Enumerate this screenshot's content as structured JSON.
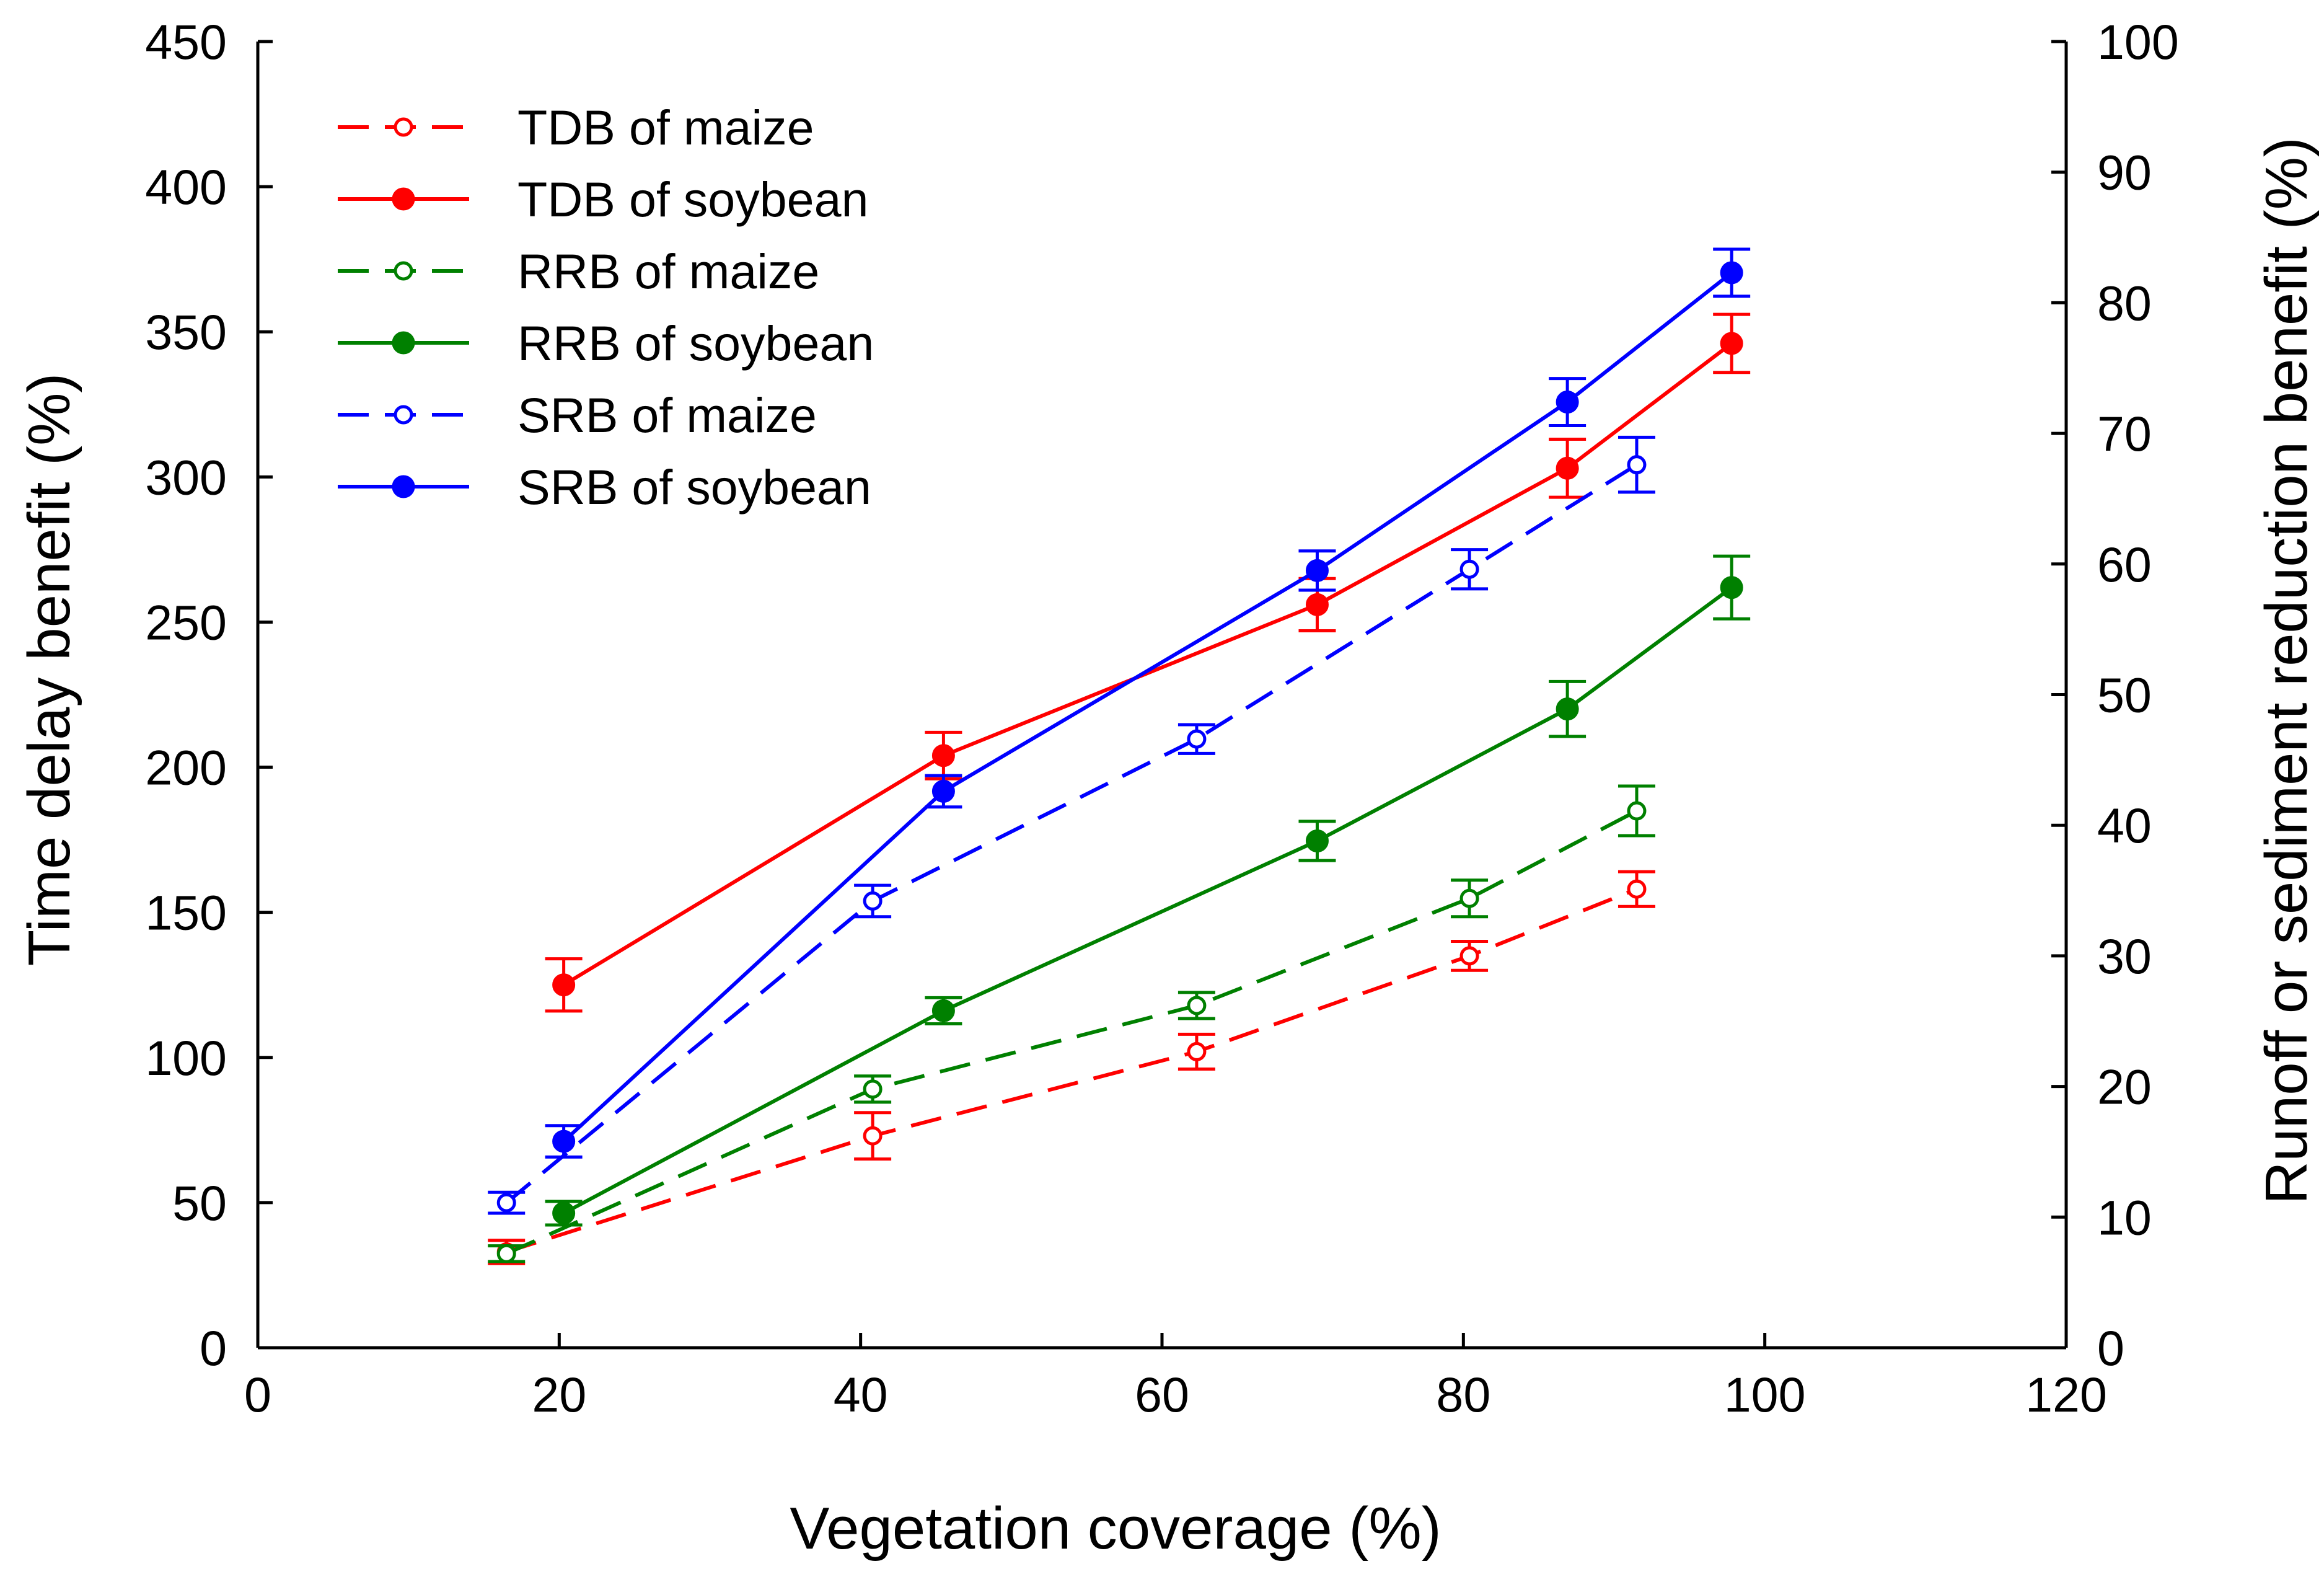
{
  "chart_data": {
    "type": "line",
    "title": "",
    "xlabel": "Vegetation coverage (%)",
    "ylabel_left": "Time delay benefit (%)",
    "ylabel_right": "Runoff or sediment reduction benefit (%)",
    "xlim": [
      0,
      120
    ],
    "ylim_left": [
      0,
      450
    ],
    "ylim_right": [
      0,
      100
    ],
    "xticks": [
      "0",
      "20",
      "40",
      "60",
      "80",
      "100",
      "120"
    ],
    "yticks_left": [
      "0",
      "50",
      "100",
      "150",
      "200",
      "250",
      "300",
      "350",
      "400",
      "450"
    ],
    "yticks_right": [
      "0",
      "10",
      "20",
      "30",
      "40",
      "50",
      "60",
      "70",
      "80",
      "90",
      "100"
    ],
    "grid": false,
    "legend_position": "top-left",
    "series": [
      {
        "name": "TDB of maize",
        "axis": "left",
        "color": "#ff0000",
        "dash": true,
        "filled": false,
        "x": [
          16.5,
          40.8,
          62.3,
          80.4,
          91.5
        ],
        "y": [
          33,
          73,
          102,
          135,
          158
        ],
        "err": [
          4,
          8,
          6,
          5,
          6
        ]
      },
      {
        "name": "TDB of soybean",
        "axis": "left",
        "color": "#ff0000",
        "dash": false,
        "filled": true,
        "x": [
          20.3,
          45.5,
          70.3,
          86.9,
          97.8
        ],
        "y": [
          125,
          204,
          256,
          303,
          346
        ],
        "err": [
          9,
          8,
          9,
          10,
          10
        ]
      },
      {
        "name": "RRB of maize",
        "axis": "right",
        "color": "#008000",
        "dash": true,
        "filled": false,
        "x": [
          16.5,
          40.8,
          62.3,
          80.4,
          91.5
        ],
        "y": [
          7.2,
          19.8,
          26.2,
          34.4,
          41.1
        ],
        "err": [
          0.6,
          1.0,
          1.0,
          1.4,
          1.9
        ]
      },
      {
        "name": "RRB of soybean",
        "axis": "right",
        "color": "#008000",
        "dash": false,
        "filled": true,
        "x": [
          20.3,
          45.5,
          70.3,
          86.9,
          97.8
        ],
        "y": [
          10.3,
          25.8,
          38.8,
          48.9,
          58.2
        ],
        "err": [
          0.9,
          1.0,
          1.5,
          2.1,
          2.4
        ]
      },
      {
        "name": "SRB of maize",
        "axis": "right",
        "color": "#0000ff",
        "dash": true,
        "filled": false,
        "x": [
          16.5,
          40.8,
          62.3,
          80.4,
          91.5
        ],
        "y": [
          11.1,
          34.2,
          46.6,
          59.6,
          67.6
        ],
        "err": [
          0.8,
          1.2,
          1.1,
          1.5,
          2.1
        ]
      },
      {
        "name": "SRB of soybean",
        "axis": "right",
        "color": "#0000ff",
        "dash": false,
        "filled": true,
        "x": [
          20.3,
          45.5,
          70.3,
          86.9,
          97.8
        ],
        "y": [
          15.8,
          42.6,
          59.5,
          72.4,
          82.3
        ],
        "err": [
          1.2,
          1.2,
          1.5,
          1.8,
          1.8
        ]
      }
    ]
  }
}
